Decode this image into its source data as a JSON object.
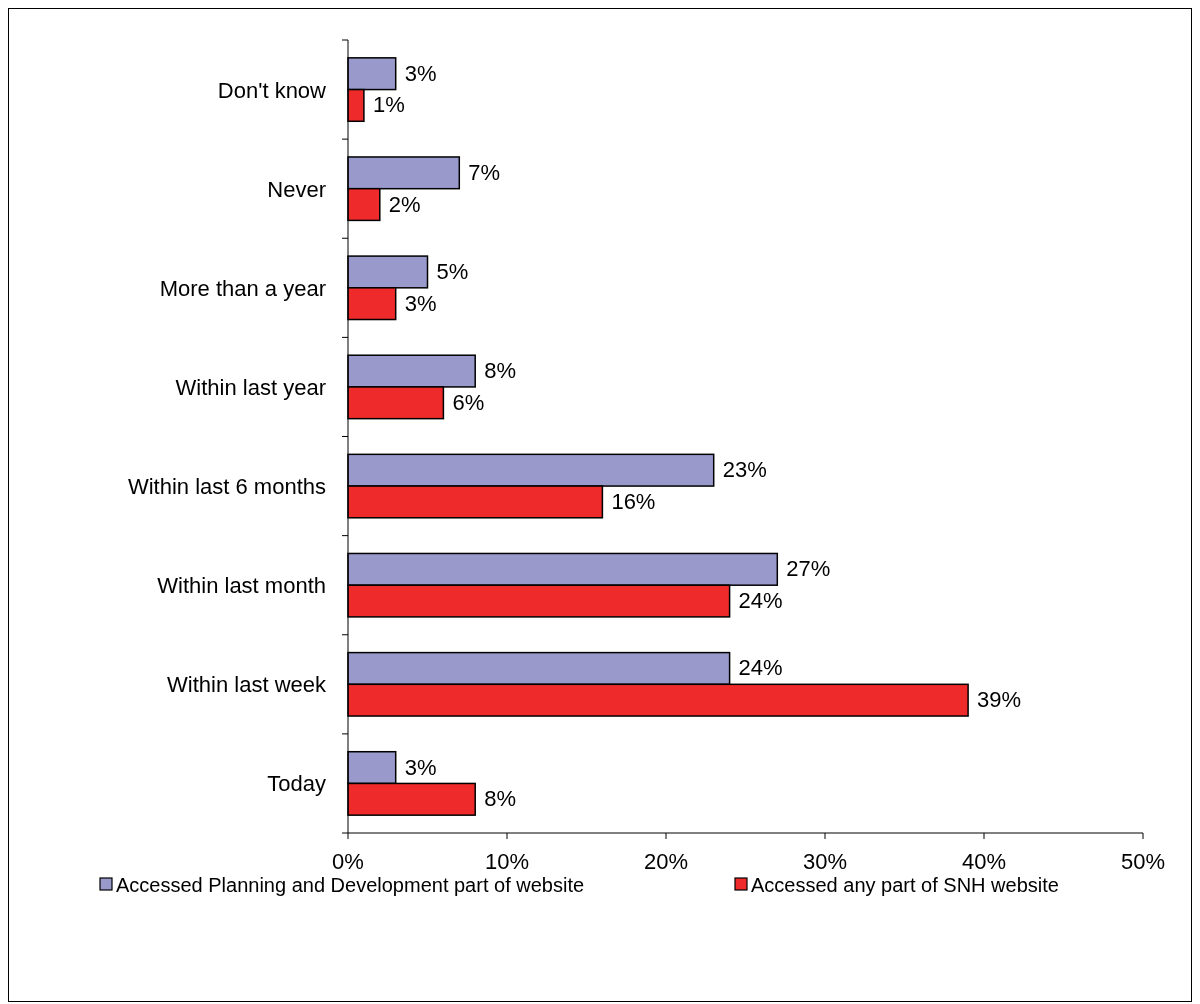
{
  "chart_data": {
    "type": "bar",
    "orientation": "horizontal",
    "categories": [
      "Don't know",
      "Never",
      "More than a year",
      "Within last year",
      "Within last 6 months",
      "Within last month",
      "Within last week",
      "Today"
    ],
    "series": [
      {
        "name": "Accessed Planning and Development part of website",
        "color": "#9999cc",
        "values": [
          3,
          7,
          5,
          8,
          23,
          27,
          24,
          3
        ],
        "value_labels": [
          "3%",
          "7%",
          "5%",
          "8%",
          "23%",
          "27%",
          "24%",
          "3%"
        ]
      },
      {
        "name": "Accessed any part of SNH website",
        "color": "#ee2a2a",
        "values": [
          1,
          2,
          3,
          6,
          16,
          24,
          39,
          8
        ],
        "value_labels": [
          "1%",
          "2%",
          "3%",
          "6%",
          "16%",
          "24%",
          "39%",
          "8%"
        ]
      }
    ],
    "xlim": [
      0,
      50
    ],
    "xticks": [
      {
        "value": 0,
        "label": "0%"
      },
      {
        "value": 10,
        "label": "10%"
      },
      {
        "value": 20,
        "label": "20%"
      },
      {
        "value": 30,
        "label": "30%"
      },
      {
        "value": 40,
        "label": "40%"
      },
      {
        "value": 50,
        "label": "50%"
      }
    ],
    "grid": false,
    "legend": "bottom"
  }
}
